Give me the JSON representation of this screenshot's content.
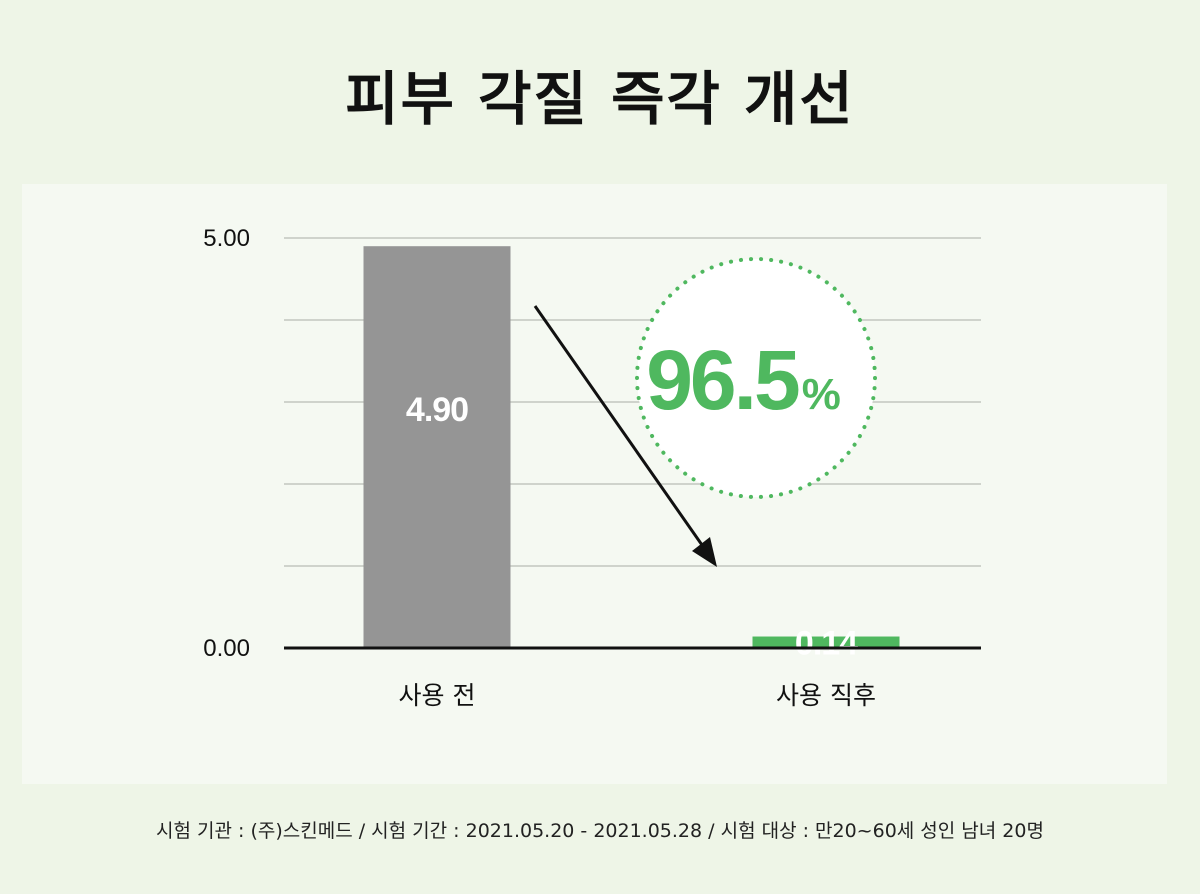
{
  "title": "피부 각질 즉각 개선",
  "chart_data": {
    "type": "bar",
    "categories": [
      "사용 전",
      "사용 직후"
    ],
    "values": [
      4.9,
      0.14
    ],
    "value_labels": [
      "4.90",
      "0.14"
    ],
    "bar_colors": [
      "#959595",
      "#4fb85f"
    ],
    "ylim": [
      0,
      5
    ],
    "yticks": [
      0,
      1,
      2,
      3,
      4,
      5
    ],
    "ytick_labels": [
      "0.00",
      "5.00"
    ],
    "grid": true,
    "xlabel": "",
    "ylabel": "",
    "annotation": {
      "text": "96.5",
      "suffix": "%",
      "color": "#4fb85f"
    }
  },
  "footnote": "시험 기관 : (주)스킨메드 / 시험 기간 : 2021.05.20 - 2021.05.28 / 시험 대상 : 만20~60세 성인 남녀 20명"
}
